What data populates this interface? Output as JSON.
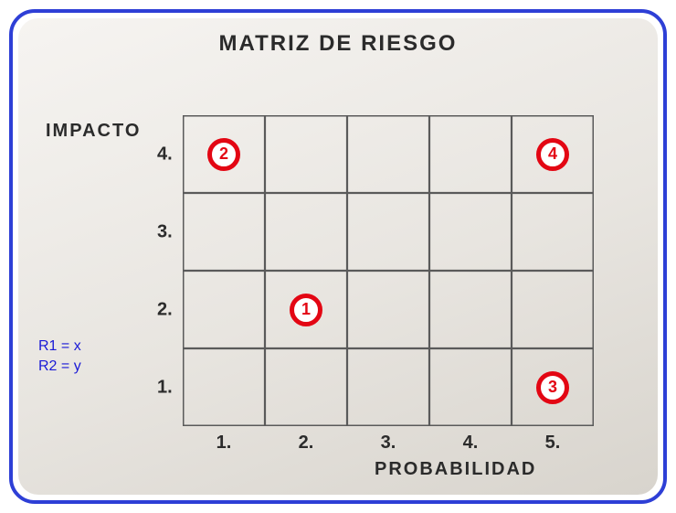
{
  "frame": {
    "border_color": "#2e3fd6",
    "background_gradient": [
      "#f6f4f1",
      "#e8e5e0",
      "#d8d4cd"
    ]
  },
  "title": "MATRIZ  DE  RIESGO",
  "y_axis_label": "IMPACTO",
  "x_axis_label": "PROBABILIDAD",
  "text_color": "#2b2b2b",
  "grid": {
    "cols": 5,
    "rows": 4,
    "line_color": "#5a5a5a",
    "line_width": 2.2,
    "outer_line_width": 3
  },
  "x_ticks": [
    "1.",
    "2.",
    "3.",
    "4.",
    "5."
  ],
  "y_ticks": [
    "4.",
    "3.",
    "2.",
    "1."
  ],
  "legend": {
    "color": "#1a1ad6",
    "lines": [
      "R1 = x",
      "R2 = y"
    ]
  },
  "markers": [
    {
      "label": "2",
      "col": 1,
      "row": 4,
      "diameter": 36,
      "ring_color": "#e30613",
      "text_color": "#e30613",
      "font_size": 18
    },
    {
      "label": "4",
      "col": 5,
      "row": 4,
      "diameter": 36,
      "ring_color": "#e30613",
      "text_color": "#e30613",
      "font_size": 18
    },
    {
      "label": "1",
      "col": 2,
      "row": 2,
      "diameter": 36,
      "ring_color": "#e30613",
      "text_color": "#e30613",
      "font_size": 18
    },
    {
      "label": "3",
      "col": 5,
      "row": 1,
      "diameter": 36,
      "ring_color": "#e30613",
      "text_color": "#e30613",
      "font_size": 18
    }
  ]
}
